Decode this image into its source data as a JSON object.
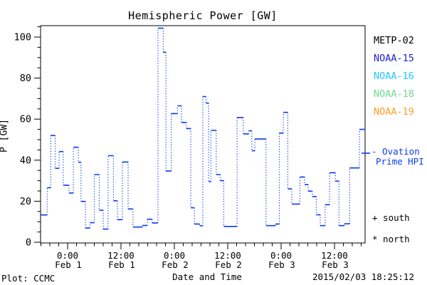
{
  "window": {
    "background": "#ffffff",
    "text_color": "#000000"
  },
  "title": "Hemispheric Power [GW]",
  "axes": {
    "y_label": "P [GW]",
    "x_label": "Date and Time"
  },
  "legend": {
    "satellites": [
      {
        "label": "METP-02",
        "color": "#000000"
      },
      {
        "label": "NOAA-15",
        "color": "#2222d0"
      },
      {
        "label": "NOAA-16",
        "color": "#22c8ff"
      },
      {
        "label": "NOAA-18",
        "color": "#6fd98f"
      },
      {
        "label": "NOAA-19",
        "color": "#ff9d26"
      }
    ],
    "line_legend": {
      "line1": "- Ovation",
      "line2": "Prime HPI",
      "color": "#0a3cf0"
    },
    "marker_legend": [
      {
        "symbol": "+",
        "label": "south"
      },
      {
        "symbol": "*",
        "label": "north"
      }
    ]
  },
  "footer": {
    "left": "Plot: CCMC",
    "right": "2015/02/03 18:25:12"
  },
  "chart_data": {
    "type": "line",
    "subtype": "stair-step, dotted vertical connectors, solid horizontal steps",
    "title": "Hemispheric Power [GW]",
    "xlabel": "Date and Time",
    "ylabel": "P [GW]",
    "grid": false,
    "x_unit": "hours since 2015-02-01 00:00",
    "xlim": [
      -6.1,
      66.9
    ],
    "ylim": [
      0,
      105.5
    ],
    "y_major_ticks": [
      0,
      20,
      40,
      60,
      80,
      100
    ],
    "y_minor_step": 5,
    "x_major_ticks": [
      {
        "t": 0,
        "line1": "0:00",
        "line2": "Feb 1"
      },
      {
        "t": 12,
        "line1": "12:00",
        "line2": "Feb 1"
      },
      {
        "t": 24,
        "line1": "0:00",
        "line2": "Feb 2"
      },
      {
        "t": 36,
        "line1": "12:00",
        "line2": "Feb 2"
      },
      {
        "t": 48,
        "line1": "0:00",
        "line2": "Feb 3"
      },
      {
        "t": 60,
        "line1": "12:00",
        "line2": "Feb 3"
      }
    ],
    "x_minor_step_hours": 2,
    "series": [
      {
        "name": "Ovation Prime HPI",
        "color": "#0a3cf0",
        "end_t": 66.9,
        "steps": [
          [
            -6.1,
            13.3
          ],
          [
            -4.6,
            26.6
          ],
          [
            -3.8,
            52.0
          ],
          [
            -2.8,
            36.0
          ],
          [
            -1.9,
            44.2
          ],
          [
            -1.0,
            27.8
          ],
          [
            0.3,
            24.0
          ],
          [
            1.3,
            46.3
          ],
          [
            2.4,
            39.0
          ],
          [
            3.0,
            19.9
          ],
          [
            4.0,
            6.9
          ],
          [
            5.0,
            9.5
          ],
          [
            6.0,
            33.0
          ],
          [
            7.1,
            15.6
          ],
          [
            8.0,
            6.4
          ],
          [
            9.1,
            42.2
          ],
          [
            10.3,
            20.2
          ],
          [
            11.2,
            11.0
          ],
          [
            12.3,
            39.1
          ],
          [
            13.6,
            16.2
          ],
          [
            14.7,
            7.4
          ],
          [
            16.8,
            8.2
          ],
          [
            17.9,
            11.2
          ],
          [
            19.0,
            9.4
          ],
          [
            20.3,
            104.3
          ],
          [
            21.5,
            92.6
          ],
          [
            22.1,
            34.7
          ],
          [
            23.3,
            62.7
          ],
          [
            24.7,
            66.5
          ],
          [
            25.6,
            58.4
          ],
          [
            26.7,
            55.4
          ],
          [
            27.7,
            16.8
          ],
          [
            28.5,
            8.9
          ],
          [
            29.7,
            8.0
          ],
          [
            30.4,
            71.0
          ],
          [
            31.1,
            67.8
          ],
          [
            31.7,
            29.5
          ],
          [
            32.2,
            54.5
          ],
          [
            33.4,
            33.0
          ],
          [
            34.3,
            30.0
          ],
          [
            35.1,
            7.7
          ],
          [
            38.1,
            60.8
          ],
          [
            39.5,
            52.8
          ],
          [
            40.7,
            54.3
          ],
          [
            41.4,
            44.6
          ],
          [
            42.1,
            50.3
          ],
          [
            44.6,
            8.1
          ],
          [
            46.7,
            8.9
          ],
          [
            47.6,
            53.2
          ],
          [
            48.5,
            63.3
          ],
          [
            49.5,
            26.0
          ],
          [
            50.4,
            18.6
          ],
          [
            52.2,
            31.8
          ],
          [
            53.3,
            28.1
          ],
          [
            54.1,
            24.9
          ],
          [
            55.0,
            22.3
          ],
          [
            55.9,
            13.4
          ],
          [
            56.8,
            8.1
          ],
          [
            57.9,
            18.3
          ],
          [
            58.9,
            33.9
          ],
          [
            60.2,
            29.8
          ],
          [
            61.0,
            8.1
          ],
          [
            62.2,
            9.0
          ],
          [
            63.4,
            36.2
          ],
          [
            65.6,
            55.0
          ]
        ]
      }
    ],
    "legend_entries": [
      "METP-02",
      "NOAA-15",
      "NOAA-16",
      "NOAA-18",
      "NOAA-19",
      "- Ovation Prime HPI",
      "+ south",
      "* north"
    ],
    "legend_position": "right"
  }
}
